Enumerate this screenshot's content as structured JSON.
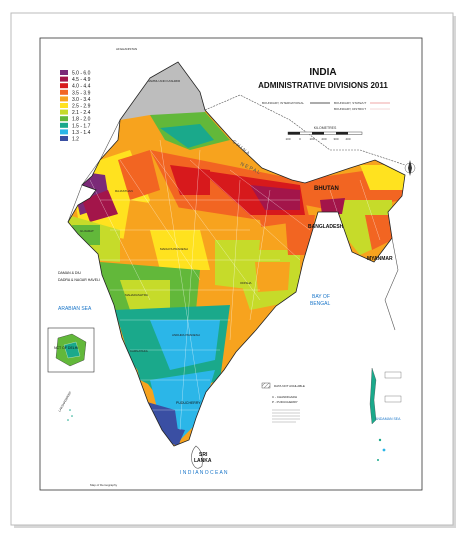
{
  "map": {
    "title": "INDIA",
    "subtitle": "ADMINISTRATIVE DIVISIONS 2011",
    "legend": [
      {
        "label": "5.0 - 6.0",
        "color": "#7b2a78"
      },
      {
        "label": "4.5 - 4.9",
        "color": "#a3154a"
      },
      {
        "label": "4.0 - 4.4",
        "color": "#d7191c"
      },
      {
        "label": "3.5 - 3.9",
        "color": "#f26522"
      },
      {
        "label": "3.0 - 3.4",
        "color": "#f7a31e"
      },
      {
        "label": "2.5 - 2.9",
        "color": "#ffe21f"
      },
      {
        "label": "2.1 - 2.4",
        "color": "#c6db2a"
      },
      {
        "label": "1.8 - 2.0",
        "color": "#62b83a"
      },
      {
        "label": "1.5 - 1.7",
        "color": "#1aa98b"
      },
      {
        "label": "1.3 - 1.4",
        "color": "#2bb6e8"
      },
      {
        "label": "1.2",
        "color": "#3a4fa3"
      }
    ],
    "boundary_labels": {
      "international": "BOUNDARY, INTERNATIONAL",
      "state": "BOUNDARY, STATE/UT",
      "district": "BOUNDARY, DISTRICT"
    },
    "scale_label": "KILOMETRES",
    "scale_ticks": [
      "100",
      "0",
      "100",
      "200",
      "300",
      "400"
    ],
    "data_not_available": "DATA NOT AVAILABLE",
    "abbreviations": [
      "C - CHANDIGARH",
      "P - PUDUCHERRY"
    ],
    "places": {
      "afghanistan": "AFGHANISTAN",
      "jammu_kashmir": "JAMMU AND KASHMIR",
      "china": "C H I N A",
      "nepal": "N E P A L",
      "bhutan": "BHUTAN",
      "bangladesh": "BANGLADESH",
      "myanmar": "MYANMAR",
      "rajasthan": "RAJASTHAN",
      "gujarat": "GUJARAT",
      "madhya_pradesh": "MADHYA PRADESH",
      "maharashtra": "MAHARASHTRA",
      "odisha": "ODISHA",
      "andhra_pradesh": "ANDHRA PRADESH",
      "karnataka": "KARNATAKA",
      "puducherry": "PUDUCHERRY",
      "daman_diu": "DAMAN & DIU",
      "dadra": "DADRA & NAGAR HAVELI",
      "arabian_sea": "ARABIAN SEA",
      "bay_of_bengal_1": "BAY OF",
      "bay_of_bengal_2": "BENGAL",
      "nct_delhi": "NCT OF DELHI",
      "lakshadweep": "LAKSHADWEEP",
      "andaman_sea": "ANDAMAN SEA",
      "sri_lanka_1": "SRI",
      "sri_lanka_2": "LANKA",
      "indian_ocean": "I N D I A N   O C E A N"
    },
    "credit": "Map of Demography"
  }
}
